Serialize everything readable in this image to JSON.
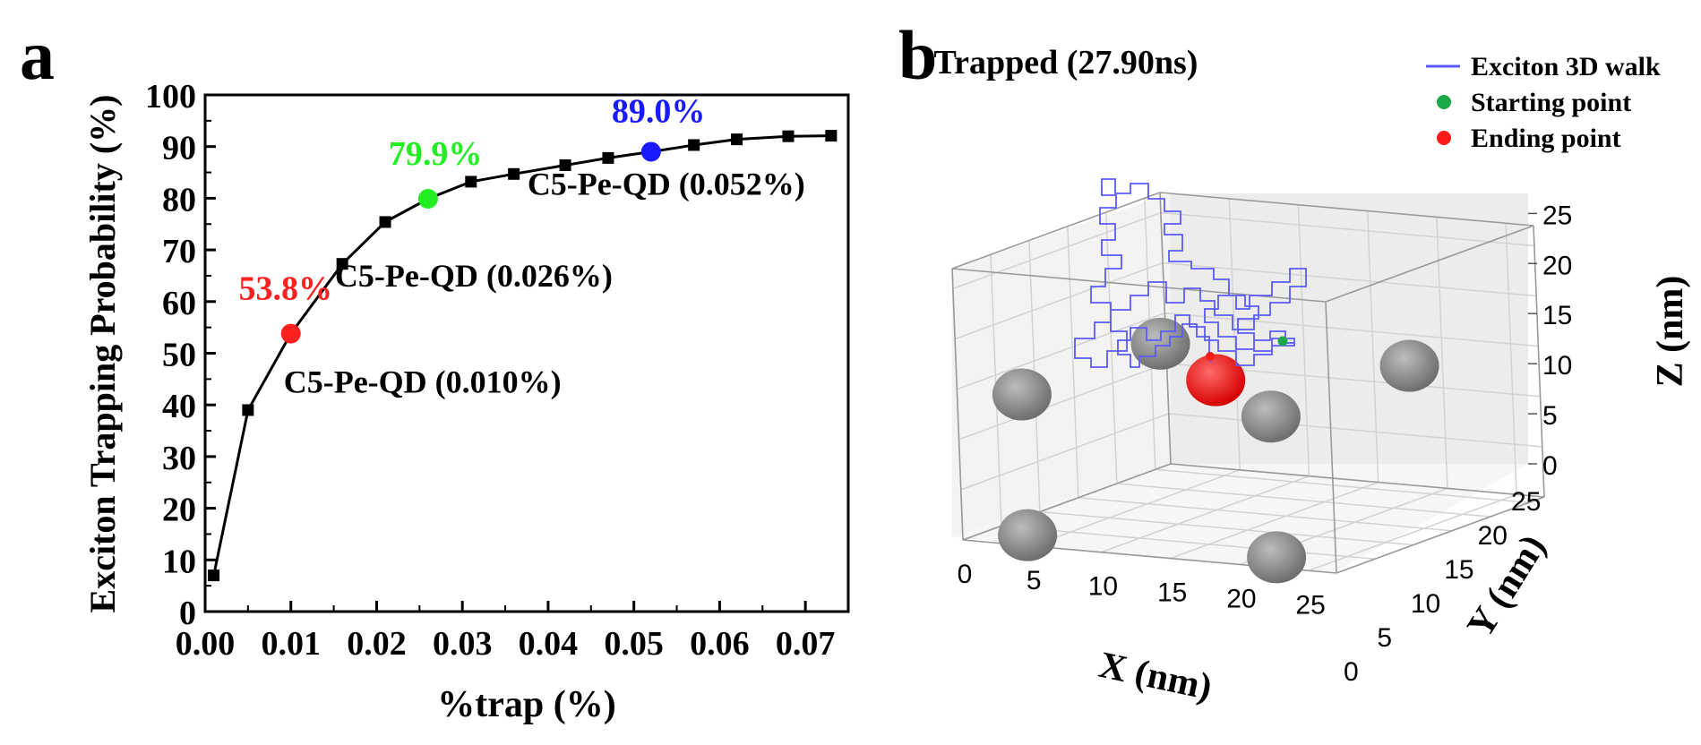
{
  "panels": {
    "a_label": "a",
    "b_label": "b"
  },
  "chart_data": [
    {
      "type": "line",
      "panel": "a",
      "title": "",
      "xlabel": "%trap (%)",
      "ylabel": "Exciton Trapping Probability (%)",
      "xlim": [
        0,
        0.075
      ],
      "ylim": [
        0,
        100
      ],
      "xticks": [
        "0.00",
        "0.01",
        "0.02",
        "0.03",
        "0.04",
        "0.05",
        "0.06",
        "0.07"
      ],
      "yticks": [
        "0",
        "10",
        "20",
        "30",
        "40",
        "50",
        "60",
        "70",
        "80",
        "90",
        "100"
      ],
      "series": [
        {
          "name": "trapping probability",
          "color": "#000000",
          "x": [
            0.001,
            0.005,
            0.01,
            0.016,
            0.021,
            0.026,
            0.031,
            0.036,
            0.042,
            0.047,
            0.052,
            0.057,
            0.062,
            0.068,
            0.073
          ],
          "y": [
            7,
            39,
            53.8,
            67.3,
            75.4,
            79.9,
            83.2,
            84.7,
            86.4,
            87.8,
            89.0,
            90.3,
            91.4,
            92.0,
            92.1
          ]
        }
      ],
      "highlights": [
        {
          "x": 0.01,
          "y": 53.8,
          "color": "#ff2020",
          "value_label": "53.8%",
          "sample_label": "C5-Pe-QD (0.010%)"
        },
        {
          "x": 0.026,
          "y": 79.9,
          "color": "#22ee22",
          "value_label": "79.9%",
          "sample_label": "C5-Pe-QD (0.026%)"
        },
        {
          "x": 0.052,
          "y": 89.0,
          "color": "#1a1aff",
          "value_label": "89.0%",
          "sample_label": "C5-Pe-QD (0.052%)"
        }
      ]
    },
    {
      "type": "scatter",
      "panel": "b",
      "title": "Trapped (27.90ns)",
      "xlabel": "X (nm)",
      "ylabel": "Y (nm)",
      "zlabel": "Z (nm)",
      "xlim": [
        0,
        27
      ],
      "ylim": [
        0,
        27
      ],
      "zlim": [
        0,
        27
      ],
      "xticks": [
        "0",
        "5",
        "10",
        "15",
        "20",
        "25"
      ],
      "yticks": [
        "0",
        "5",
        "10",
        "15",
        "20",
        "25"
      ],
      "zticks": [
        "0",
        "5",
        "10",
        "15",
        "20",
        "25"
      ],
      "legend": [
        {
          "label": "Exciton 3D walk",
          "color": "#5a5aff",
          "marker": "line"
        },
        {
          "label": "Starting point",
          "color": "#1aa84a",
          "marker": "dot"
        },
        {
          "label": "Ending point",
          "color": "#ff1a1a",
          "marker": "dot"
        }
      ],
      "quantum_dots": [
        {
          "x": 3,
          "y": 3,
          "z": 14,
          "color": "#808080"
        },
        {
          "x": 3,
          "y": 21,
          "z": 14,
          "color": "#808080"
        },
        {
          "x": 21,
          "y": 21,
          "z": 14,
          "color": "#808080"
        },
        {
          "x": 21,
          "y": 3,
          "z": 14,
          "color": "#808080"
        },
        {
          "x": 3,
          "y": 3,
          "z": 0,
          "color": "#808080"
        },
        {
          "x": 21,
          "y": 3,
          "z": 0,
          "color": "#808080"
        },
        {
          "x": 12,
          "y": 12,
          "z": 14,
          "color": "#ff2020",
          "trapped": true
        }
      ],
      "walk_color": "#5a5aff",
      "start_point": {
        "x": 20,
        "y": 14,
        "z": 14
      },
      "end_point": {
        "x": 12,
        "y": 12,
        "z": 16
      }
    }
  ]
}
